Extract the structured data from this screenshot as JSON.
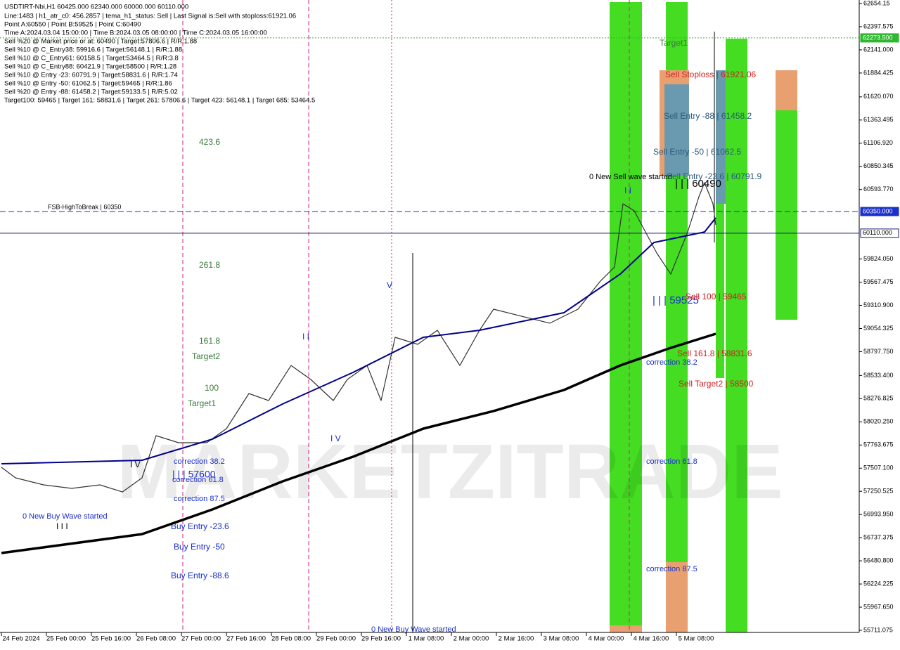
{
  "chart_data": {
    "type": "line",
    "title": "USDTIRT-Nbi,H1  60425.000 62340.000 60000.000 60110.000",
    "header_lines": [
      "Line:1483  |  h1_atr_c0: 456.2857  |  tema_h1_status: Sell  |  Last Signal is:Sell with stoploss:61921.06",
      "Point A:60550  |  Point B:59525  |  Point C:60490",
      "Time A:2024.03.04 15:00:00  |  Time B:2024.03.05 08:00:00  |  Time C:2024.03.05 16:00:00",
      "Sell %20 @ Market price or at: 60490  |  Target:57806.6  |  R/R:1.88",
      "Sell %10 @ C_Entry38: 59916.6  |  Target:56148.1  |  R/R:1.88",
      "Sell %10 @ C_Entry61: 60158.5  |  Target:53464.5  |  R/R:3.8",
      "Sell %10 @ C_Entry88: 60421.9  |  Target:58500  |  R/R:1.28",
      "Sell %10 @ Entry -23: 60791.9  |  Target:58831.6  |  R/R:1.74",
      "Sell %10 @ Entry -50: 61062.5  |  Target:59465  |  R/R:1.86",
      "Sell %20 @ Entry -88: 61458.2  |  Target:59133.5  |  R/R:5.02",
      "Target100: 59465  |  Target 161: 58831.6  |  Target 261: 57806.6  |  Target 423: 56148.1  |  Target 685: 53464.5"
    ],
    "watermark": "MARKETZITRADE",
    "annotations": [
      "423.6",
      "261.8",
      "161.8",
      "Target2",
      "100",
      "Target1",
      "Target1",
      "Sell Stoploss | 61921.06",
      "Sell Entry -88 | 61458.2",
      "Sell Entry -50 | 61062.5",
      "0 New Sell wave started",
      "Sell Entry -23.6 | 60791.9",
      "| | | 60490",
      "FSB-HighToBreak | 60350",
      "V",
      "I V",
      "I V",
      "I I I",
      "I I",
      "I I",
      "| | | 59525",
      "Sell 100 | 59465",
      "Sell 161.8 | 58831.6",
      "Sell Target2 | 58500",
      "correction 38.2",
      "correction 61.8",
      "correction 87.5",
      "correction 38.2",
      "| | | 57600",
      "correction 61.8",
      "correction 87.5",
      "0 New Buy Wave started",
      "Buy Entry -23.6",
      "Buy Entry -50",
      "Buy Entry -88.6",
      "0 New Buy Wave started"
    ],
    "xlim": [
      -0.5,
      305
    ],
    "ylim": [
      55687.7,
      62693.1
    ],
    "xticks": [
      {
        "value": 0,
        "label": "24 Feb 2024"
      },
      {
        "value": 16,
        "label": "25 Feb 00:00"
      },
      {
        "value": 32,
        "label": "25 Feb 16:00"
      },
      {
        "value": 48,
        "label": "26 Feb 08:00"
      },
      {
        "value": 64,
        "label": "27 Feb 00:00"
      },
      {
        "value": 80,
        "label": "27 Feb 16:00"
      },
      {
        "value": 96,
        "label": "28 Feb 08:00"
      },
      {
        "value": 112,
        "label": "29 Feb 00:00"
      },
      {
        "value": 128,
        "label": "29 Feb 16:00"
      },
      {
        "value": 144,
        "label": "1 Mar 08:00"
      },
      {
        "value": 160,
        "label": "2 Mar 00:00"
      },
      {
        "value": 176,
        "label": "2 Mar 16:00"
      },
      {
        "value": 192,
        "label": "3 Mar 08:00"
      },
      {
        "value": 208,
        "label": "4 Mar 00:00"
      },
      {
        "value": 224,
        "label": "4 Mar 16:00"
      },
      {
        "value": 240,
        "label": "5 Mar 08:00"
      }
    ],
    "yticks": [
      62654.15,
      62397.575,
      {
        "value": 62141,
        "label": "62141.000"
      },
      61884.425,
      {
        "value": 61620.07,
        "label": "61620.070"
      },
      61363.495,
      {
        "value": 61106.92,
        "label": "61106.920"
      },
      60850.345,
      {
        "value": 60593.77,
        "label": "60593.770"
      },
      {
        "value": 59824.05,
        "label": "59824.050"
      },
      59567.475,
      {
        "value": 59310.9,
        "label": "59310.900"
      },
      59054.325,
      {
        "value": 58797.75,
        "label": "58797.750"
      },
      {
        "value": 58533.4,
        "label": "58533.400"
      },
      58276.825,
      {
        "value": 58020.25,
        "label": "58020.250"
      },
      57763.675,
      {
        "value": 57507.1,
        "label": "57507.100"
      },
      57250.525,
      {
        "value": 56993.95,
        "label": "56993.950"
      },
      56737.375,
      {
        "value": 56480.8,
        "label": "56480.800"
      },
      56224.225,
      {
        "value": 55967.65,
        "label": "55967.650"
      },
      55711.075
    ],
    "levels": [
      {
        "value": 62273.5,
        "label": "62273.500",
        "color": "#2fb82f"
      },
      {
        "value": 60350,
        "label": "60350.000",
        "color": "#1a2fcc"
      },
      {
        "value": 60110,
        "label": "60110.000",
        "color": "#1a1a6e"
      }
    ],
    "series": [
      {
        "color": "#333333",
        "width": 1.2,
        "x": [
          0,
          5,
          15,
          25,
          35,
          43,
          50,
          55,
          63,
          73,
          80,
          88,
          95,
          103,
          110,
          118,
          123,
          130,
          135,
          140,
          148,
          155,
          163,
          170,
          175,
          185,
          195,
          205,
          213,
          218,
          221,
          225,
          229,
          233,
          238,
          240,
          244,
          248,
          250,
          253,
          254
        ],
        "values": [
          57517,
          57400,
          57322,
          57283,
          57322,
          57244,
          57400,
          57867,
          57789,
          57789,
          57945,
          58334,
          58256,
          58645,
          58490,
          58256,
          58490,
          58645,
          58256,
          58957,
          58879,
          59035,
          58645,
          59035,
          59268,
          59190,
          59113,
          59268,
          59580,
          59735,
          60436,
          60358,
          60124,
          59891,
          59657,
          59813,
          60124,
          60514,
          60669,
          60436,
          60202
        ]
      },
      {
        "color": "#00008b",
        "width": 2,
        "x": [
          0,
          50,
          75,
          100,
          125,
          150,
          170,
          200,
          220,
          232,
          250,
          254
        ],
        "values": [
          57556,
          57595,
          57828,
          58218,
          58568,
          58957,
          59035,
          59229,
          59657,
          60007,
          60124,
          60280
        ]
      },
      {
        "color": "#000000",
        "width": 3.5,
        "x": [
          0,
          50,
          75,
          100,
          125,
          150,
          175,
          200,
          220,
          238,
          254
        ],
        "values": [
          56567,
          56777,
          57050,
          57361,
          57634,
          57945,
          58140,
          58373,
          58645,
          58840,
          58996
        ]
      }
    ]
  }
}
